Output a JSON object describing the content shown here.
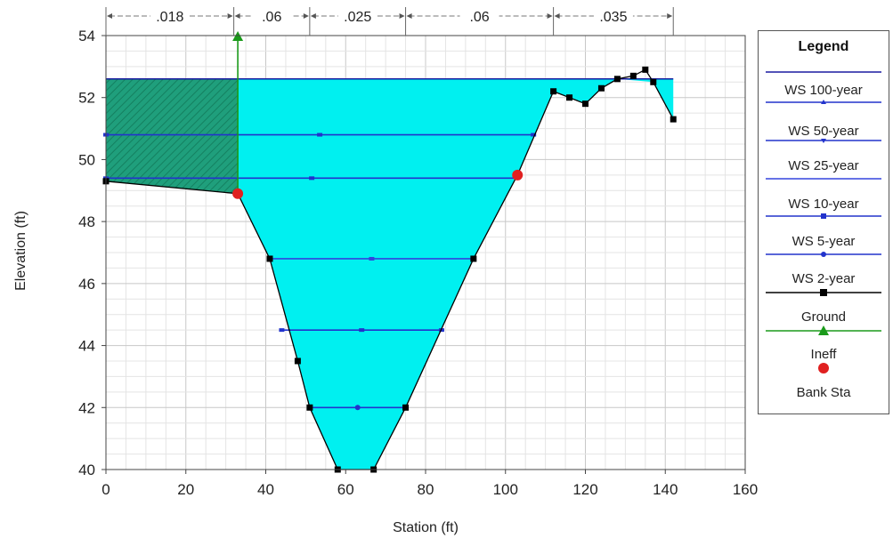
{
  "chart_data": {
    "type": "line",
    "xlabel": "Station (ft)",
    "ylabel": "Elevation (ft)",
    "xlim": [
      0,
      160
    ],
    "ylim": [
      40,
      54
    ],
    "x_ticks": [
      "0",
      "20",
      "40",
      "60",
      "80",
      "100",
      "120",
      "140",
      "160"
    ],
    "y_ticks": [
      "40",
      "42",
      "44",
      "46",
      "48",
      "50",
      "52",
      "54"
    ],
    "grid": true,
    "mannings_n": [
      {
        "label": ".018",
        "from": 0,
        "to": 32
      },
      {
        "label": ".06",
        "from": 32,
        "to": 51
      },
      {
        "label": ".025",
        "from": 51,
        "to": 75
      },
      {
        "label": ".06",
        "from": 75,
        "to": 112
      },
      {
        "label": ".035",
        "from": 112,
        "to": 142
      }
    ],
    "ground": {
      "name": "Ground",
      "color": "#000000",
      "x": [
        0,
        33,
        41,
        48,
        51,
        58,
        67,
        75,
        92,
        103,
        112,
        116,
        120,
        124,
        128,
        132,
        135,
        137,
        142
      ],
      "y": [
        49.3,
        48.9,
        46.8,
        43.5,
        42.0,
        40.0,
        40.0,
        42.0,
        46.8,
        49.5,
        52.2,
        52.0,
        51.8,
        52.3,
        52.6,
        52.7,
        52.9,
        52.5,
        51.3
      ]
    },
    "series": [
      {
        "name": "WS 100-year",
        "elevation": 52.6,
        "x_start": 0,
        "x_end": 142,
        "color": "#1a1aa0",
        "marker": "none"
      },
      {
        "name": "WS 50-year",
        "elevation": 50.8,
        "x_start": 0,
        "x_end": 107,
        "color": "#2233cc",
        "marker": "triangle"
      },
      {
        "name": "WS 25-year",
        "elevation": 49.4,
        "x_start": 0,
        "x_end": 103,
        "color": "#2233cc",
        "marker": "triangle-down"
      },
      {
        "name": "WS 10-year",
        "elevation": 46.8,
        "x_start": 41,
        "x_end": 92,
        "color": "#3344dd",
        "marker": "diamond"
      },
      {
        "name": "WS 5-year",
        "elevation": 44.5,
        "x_start": 44,
        "x_end": 84,
        "color": "#2233cc",
        "marker": "square"
      },
      {
        "name": "WS 2-year",
        "elevation": 42.0,
        "x_start": 51,
        "x_end": 75,
        "color": "#2233cc",
        "marker": "circle"
      }
    ],
    "ineffective": {
      "name": "Ineff",
      "x": 33,
      "y_from": 48.9,
      "y_to": 54.0,
      "color": "#1a9a1a"
    },
    "bank_stations": {
      "name": "Bank Sta",
      "points": [
        [
          33,
          48.9
        ],
        [
          103,
          49.5
        ]
      ],
      "color": "#e02020"
    },
    "ineffective_area_color": "#1f9f7c",
    "water_color": "#00f0f0",
    "legend": {
      "title": "Legend",
      "entries": [
        "WS 100-year",
        "WS 50-year",
        "WS 25-year",
        "WS 10-year",
        "WS 5-year",
        "WS 2-year",
        "Ground",
        "Ineff",
        "Bank Sta"
      ],
      "placement": "right"
    }
  }
}
